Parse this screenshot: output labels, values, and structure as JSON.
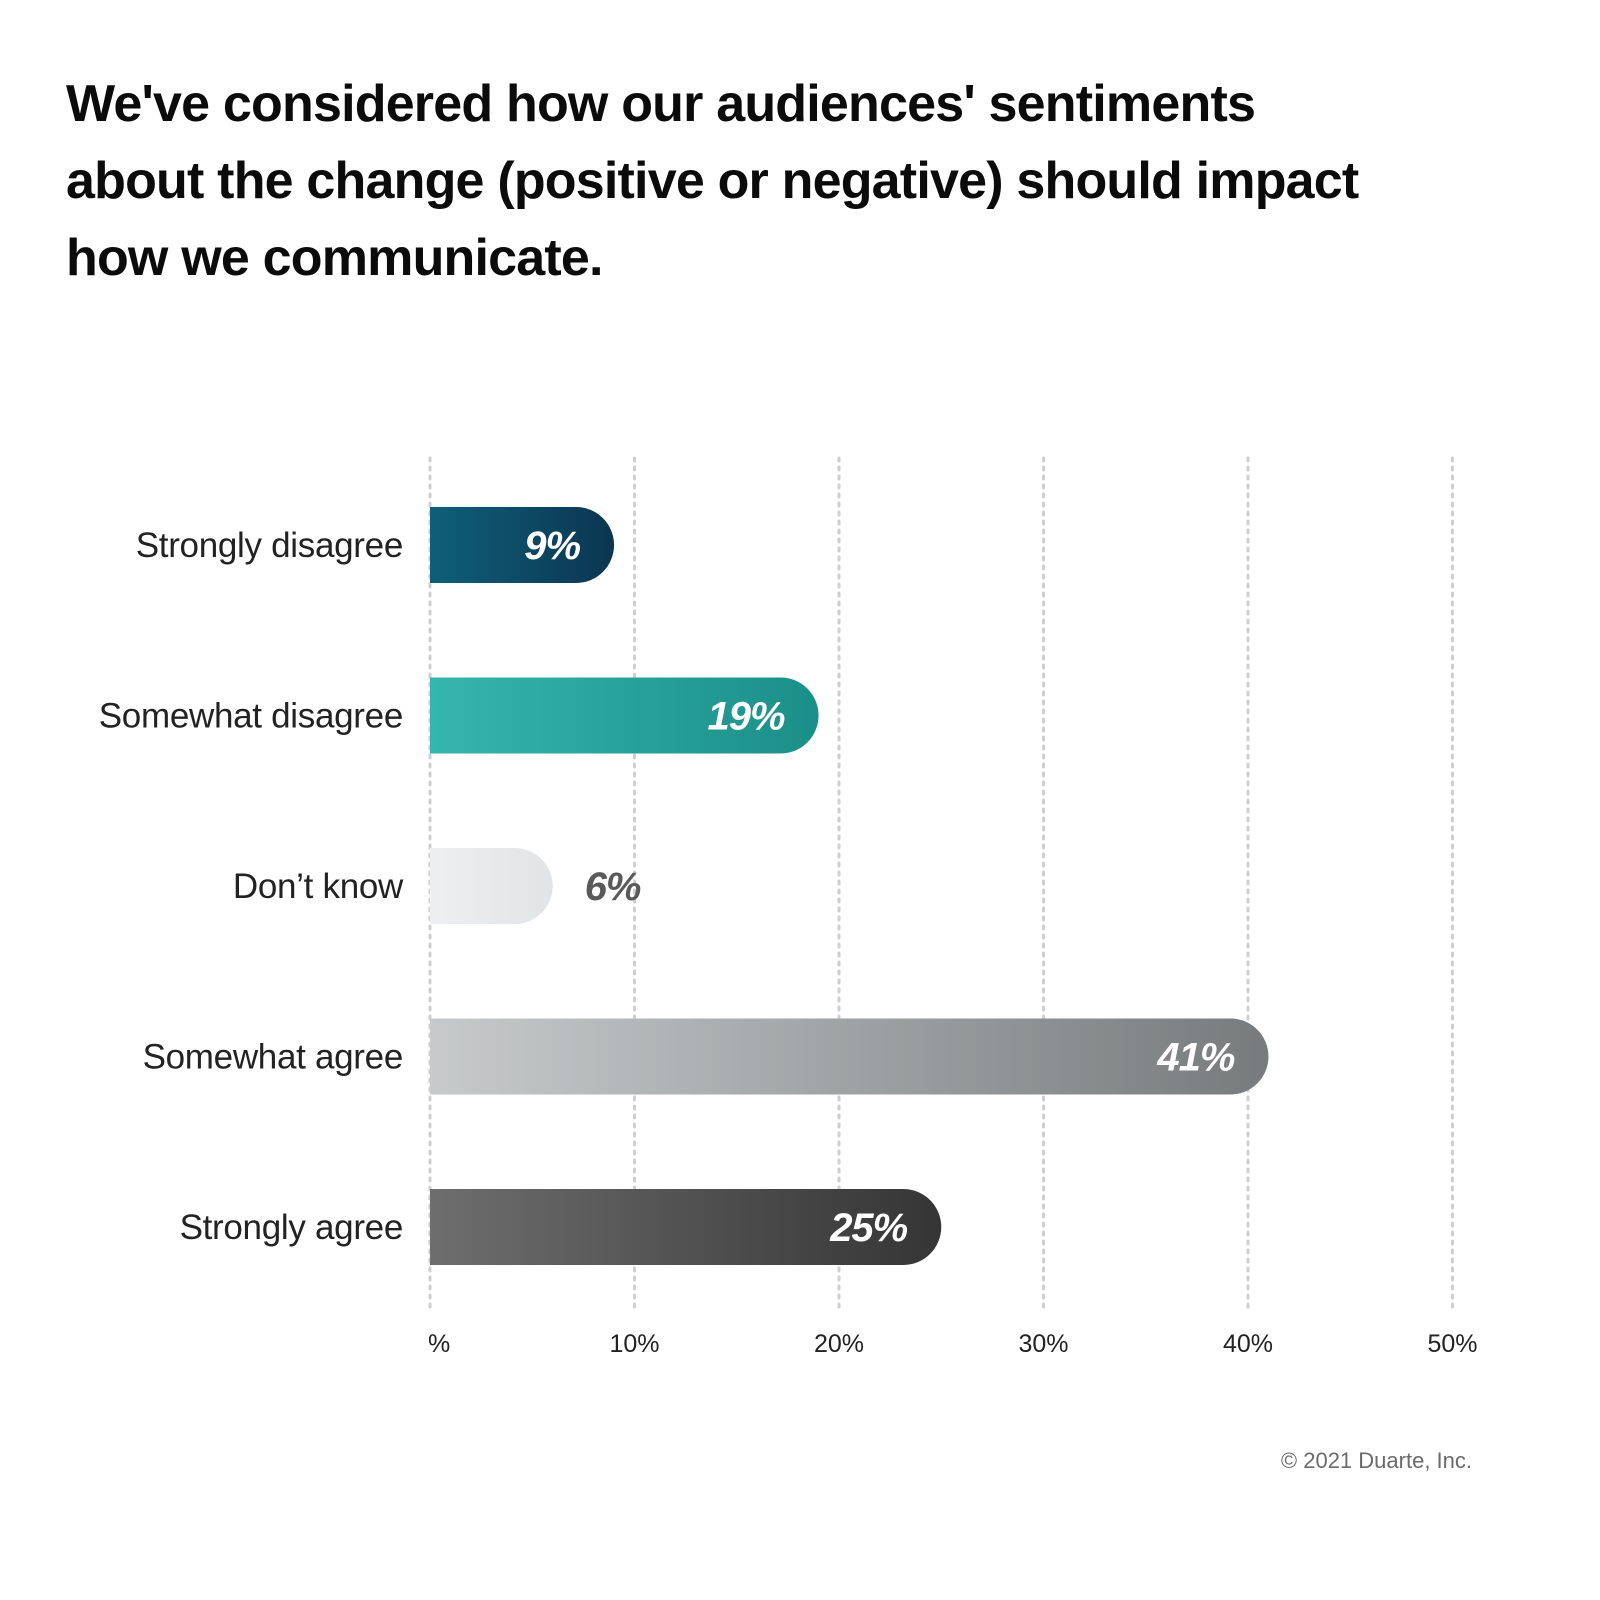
{
  "title": "We've considered how our audiences' sentiments about the change (positive or negative) should impact how we communicate.",
  "copyright": "© 2021 Duarte, Inc.",
  "chart_data": {
    "type": "bar",
    "orientation": "horizontal",
    "categories": [
      "Strongly disagree",
      "Somewhat disagree",
      "Don’t know",
      "Somewhat agree",
      "Strongly agree"
    ],
    "values": [
      9,
      19,
      6,
      41,
      25
    ],
    "value_labels": [
      "9%",
      "19%",
      "6%",
      "41%",
      "25%"
    ],
    "x_ticks": [
      0,
      10,
      20,
      30,
      40,
      50
    ],
    "x_tick_labels": [
      "%",
      "10%",
      "20%",
      "30%",
      "40%",
      "50%"
    ],
    "xlim": [
      0,
      50
    ],
    "grid": true,
    "grid_style": "dotted vertical",
    "legend": "none",
    "bar_colors": [
      [
        "#0f5f7a",
        "#0b3550"
      ],
      [
        "#35b6ad",
        "#1a8f88"
      ],
      [
        "#eeeff0",
        "#e2e3e5"
      ],
      [
        "#c7cacb",
        "#777b7c"
      ],
      [
        "#6e6e6e",
        "#353535"
      ]
    ],
    "value_label_colors": [
      "#ffffff",
      "#ffffff",
      "#5a5a5a",
      "#ffffff",
      "#ffffff"
    ],
    "value_label_inside": [
      true,
      true,
      false,
      true,
      true
    ]
  }
}
